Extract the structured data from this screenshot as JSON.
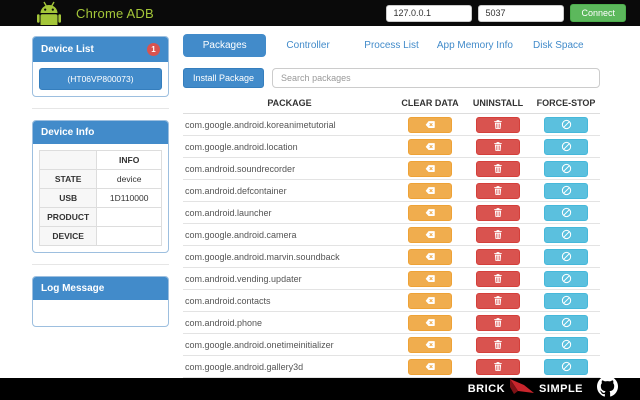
{
  "header": {
    "title": "Chrome ADB",
    "host_value": "127.0.0.1",
    "port_value": "5037",
    "connect_label": "Connect"
  },
  "sidebar": {
    "device_list": {
      "title": "Device List",
      "badge": "1",
      "device_id": "(HT06VP800073)"
    },
    "device_info": {
      "title": "Device Info",
      "table": {
        "header": [
          "",
          "INFO"
        ],
        "rows": [
          [
            "STATE",
            "device"
          ],
          [
            "USB",
            "1D110000"
          ],
          [
            "PRODUCT",
            ""
          ],
          [
            "DEVICE",
            ""
          ]
        ]
      }
    },
    "log_message": {
      "title": "Log Message"
    }
  },
  "main": {
    "tabs": [
      {
        "label": "Packages",
        "active": true
      },
      {
        "label": "Controller",
        "active": false
      },
      {
        "label": "Process List",
        "active": false
      },
      {
        "label": "App Memory Info",
        "active": false
      },
      {
        "label": "Disk Space",
        "active": false
      }
    ],
    "install_button_label": "Install Package",
    "search_placeholder": "Search packages",
    "table": {
      "columns": [
        "PACKAGE",
        "CLEAR DATA",
        "UNINSTALL",
        "FORCE-STOP"
      ],
      "packages": [
        "com.google.android.koreanimetutorial",
        "com.google.android.location",
        "com.android.soundrecorder",
        "com.android.defcontainer",
        "com.android.launcher",
        "com.google.android.camera",
        "com.google.android.marvin.soundback",
        "com.android.vending.updater",
        "com.android.contacts",
        "com.android.phone",
        "com.google.android.onetimeinitializer",
        "com.google.android.gallery3d"
      ],
      "action_icons": [
        "clear-data-icon",
        "trash-icon",
        "ban-icon"
      ]
    }
  },
  "footer": {
    "brand_left": "BRICK",
    "brand_right": "SIMPLE",
    "github_icon": "octocat-icon"
  },
  "colors": {
    "topbar_bg": "#0a0a0a",
    "android_green": "#a4c639",
    "primary_blue": "#428bca",
    "connect_green": "#5cb85c",
    "badge_red": "#d9534f",
    "warning_orange": "#f0ad4e",
    "danger_red": "#d9534f",
    "info_teal": "#5bc0de",
    "brick_logo_red": "#c9252c"
  }
}
